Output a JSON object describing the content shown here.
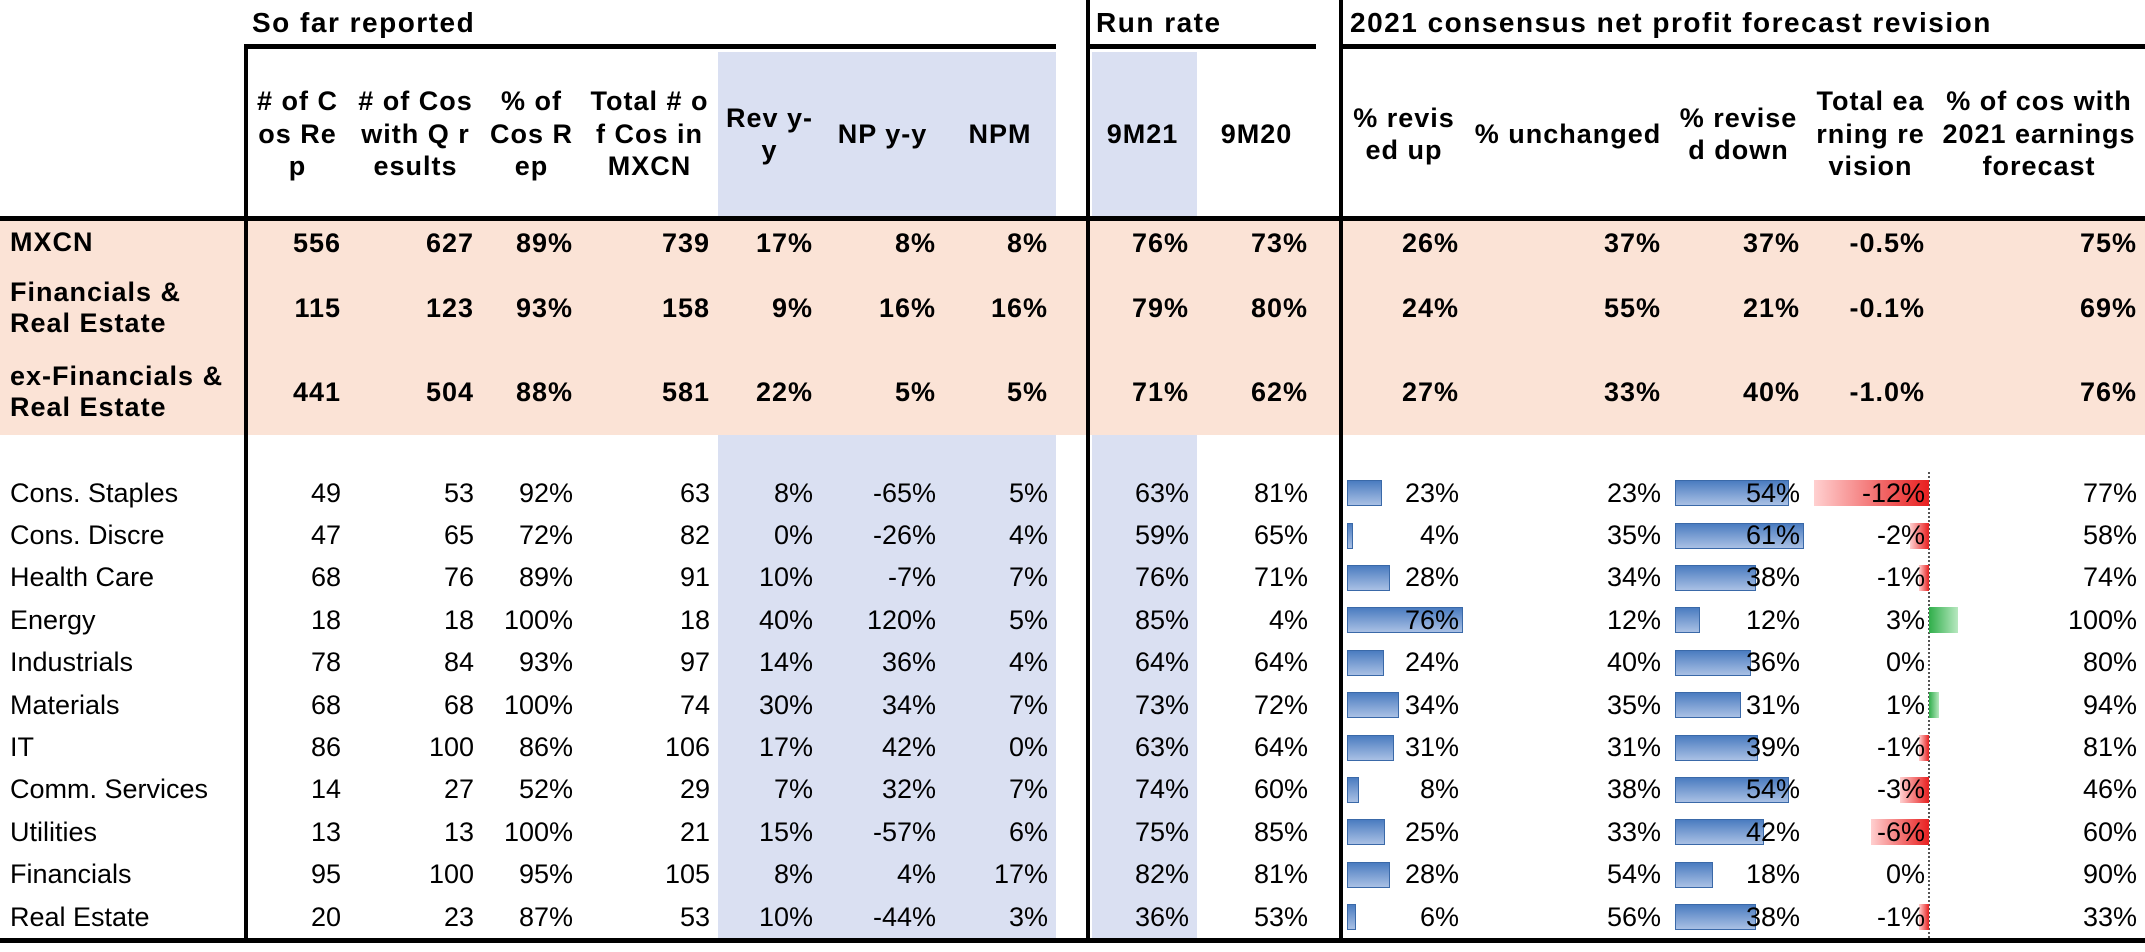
{
  "table": {
    "groups": [
      "So far reported",
      "Run rate",
      "2021 consensus net profit forecast revision"
    ],
    "columns": [
      "# of Cos Rep",
      "# of Cos with Q results",
      "% of Cos Rep",
      "Total # of Cos in MXCN",
      "Rev y-y",
      "NP y-y",
      "NPM",
      "9M21",
      "9M20",
      "% revised up",
      "% unchanged",
      "% revised down",
      "Total earning revision",
      "% of cos with 2021 earnings forecast"
    ],
    "rows": [
      [
        "MXCN",
        "556",
        "627",
        "89%",
        "739",
        "17%",
        "8%",
        "8%",
        "76%",
        "73%",
        "26%",
        "37%",
        "37%",
        "-0.5%",
        "75%"
      ],
      [
        "Financials & Real Estate",
        "115",
        "123",
        "93%",
        "158",
        "9%",
        "16%",
        "16%",
        "79%",
        "80%",
        "24%",
        "55%",
        "21%",
        "-0.1%",
        "69%"
      ],
      [
        "ex-Financials & Real Estate",
        "441",
        "504",
        "88%",
        "581",
        "22%",
        "5%",
        "5%",
        "71%",
        "62%",
        "27%",
        "33%",
        "40%",
        "-1.0%",
        "76%"
      ],
      [
        "Cons. Staples",
        "49",
        "53",
        "92%",
        "63",
        "8%",
        "-65%",
        "5%",
        "63%",
        "81%",
        "23%",
        "23%",
        "54%",
        "-12%",
        "77%"
      ],
      [
        "Cons. Discre",
        "47",
        "65",
        "72%",
        "82",
        "0%",
        "-26%",
        "4%",
        "59%",
        "65%",
        "4%",
        "35%",
        "61%",
        "-2%",
        "58%"
      ],
      [
        "Health Care",
        "68",
        "76",
        "89%",
        "91",
        "10%",
        "-7%",
        "7%",
        "76%",
        "71%",
        "28%",
        "34%",
        "38%",
        "-1%",
        "74%"
      ],
      [
        "Energy",
        "18",
        "18",
        "100%",
        "18",
        "40%",
        "120%",
        "5%",
        "85%",
        "4%",
        "76%",
        "12%",
        "12%",
        "3%",
        "100%"
      ],
      [
        "Industrials",
        "78",
        "84",
        "93%",
        "97",
        "14%",
        "36%",
        "4%",
        "64%",
        "64%",
        "24%",
        "40%",
        "36%",
        "0%",
        "80%"
      ],
      [
        "Materials",
        "68",
        "68",
        "100%",
        "74",
        "30%",
        "34%",
        "7%",
        "73%",
        "72%",
        "34%",
        "35%",
        "31%",
        "1%",
        "94%"
      ],
      [
        "IT",
        "86",
        "100",
        "86%",
        "106",
        "17%",
        "42%",
        "0%",
        "63%",
        "64%",
        "31%",
        "31%",
        "39%",
        "-1%",
        "81%"
      ],
      [
        "Comm. Services",
        "14",
        "27",
        "52%",
        "29",
        "7%",
        "32%",
        "7%",
        "74%",
        "60%",
        "8%",
        "38%",
        "54%",
        "-3%",
        "46%"
      ],
      [
        "Utilities",
        "13",
        "13",
        "100%",
        "21",
        "15%",
        "-57%",
        "6%",
        "75%",
        "85%",
        "25%",
        "33%",
        "42%",
        "-6%",
        "60%"
      ],
      [
        "Financials",
        "95",
        "100",
        "95%",
        "105",
        "8%",
        "4%",
        "17%",
        "82%",
        "81%",
        "28%",
        "54%",
        "18%",
        "0%",
        "90%"
      ],
      [
        "Real Estate",
        "20",
        "23",
        "87%",
        "53",
        "10%",
        "-44%",
        "3%",
        "36%",
        "53%",
        "6%",
        "56%",
        "38%",
        "-1%",
        "33%"
      ]
    ]
  }
}
